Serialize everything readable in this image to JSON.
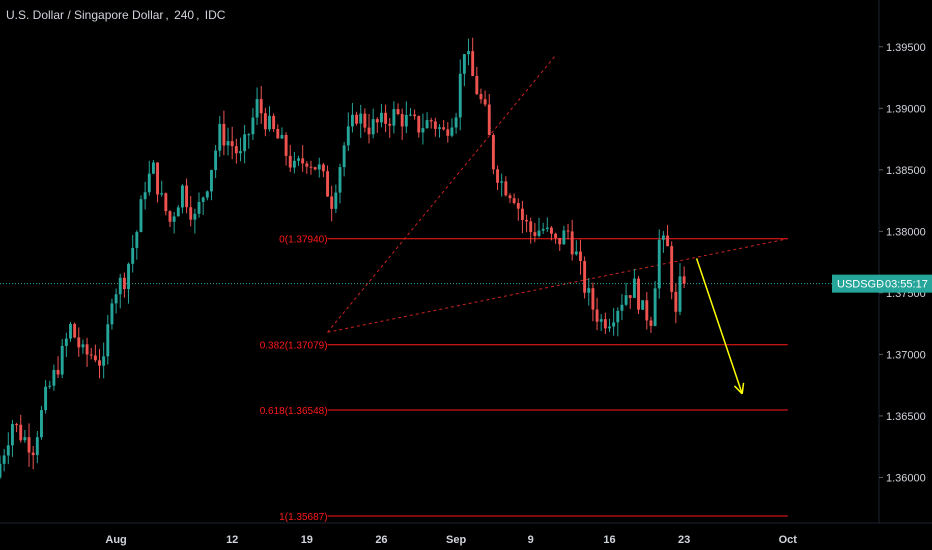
{
  "header": {
    "symbol_name": "U.S. Dollar / Singapore Dollar",
    "interval": "240",
    "source": "IDC"
  },
  "price_label": {
    "ticker": "USDSGD",
    "countdown": "03:55:17"
  },
  "colors": {
    "background": "#000000",
    "up": "#26a69a",
    "down": "#ef5350",
    "fib_line": "#ff1a1a",
    "trendline": "#cc2222",
    "arrow": "#ffff00",
    "axis_text": "#d1d4dc",
    "last_price_bg": "#26a69a"
  },
  "chart_data": {
    "type": "candlestick",
    "ylim": [
      1.3563,
      1.3988
    ],
    "y_ticks": [
      "1.39500",
      "1.39000",
      "1.38500",
      "1.38000",
      "1.37500",
      "1.37000",
      "1.36500",
      "1.36000"
    ],
    "y_tick_values": [
      1.395,
      1.39,
      1.385,
      1.38,
      1.375,
      1.37,
      1.365,
      1.36
    ],
    "x_ticks": [
      "Aug",
      "12",
      "19",
      "26",
      "Sep",
      "9",
      "16",
      "23",
      "Oct"
    ],
    "x_tick_index": [
      28,
      56,
      74,
      92,
      110,
      128,
      147,
      165,
      190
    ],
    "x_range": [
      0,
      212
    ],
    "last_price": 1.37575,
    "close_path": [
      [
        0,
        1.36
      ],
      [
        4,
        1.3645
      ],
      [
        6,
        1.3635
      ],
      [
        9,
        1.3625
      ],
      [
        12,
        1.3665
      ],
      [
        16,
        1.37
      ],
      [
        18,
        1.3722
      ],
      [
        21,
        1.37
      ],
      [
        24,
        1.37
      ],
      [
        26,
        1.369
      ],
      [
        28,
        1.375
      ],
      [
        31,
        1.3762
      ],
      [
        34,
        1.38
      ],
      [
        36,
        1.3838
      ],
      [
        38,
        1.385
      ],
      [
        40,
        1.3825
      ],
      [
        42,
        1.3808
      ],
      [
        45,
        1.3835
      ],
      [
        48,
        1.381
      ],
      [
        51,
        1.384
      ],
      [
        54,
        1.388
      ],
      [
        57,
        1.387
      ],
      [
        59,
        1.386
      ],
      [
        61,
        1.388
      ],
      [
        63,
        1.3903
      ],
      [
        66,
        1.3885
      ],
      [
        69,
        1.387
      ],
      [
        72,
        1.385
      ],
      [
        75,
        1.386
      ],
      [
        78,
        1.385
      ],
      [
        81,
        1.3825
      ],
      [
        84,
        1.387
      ],
      [
        87,
        1.3895
      ],
      [
        90,
        1.3885
      ],
      [
        93,
        1.3888
      ],
      [
        96,
        1.3895
      ],
      [
        99,
        1.389
      ],
      [
        102,
        1.3885
      ],
      [
        105,
        1.389
      ],
      [
        108,
        1.388
      ],
      [
        111,
        1.39
      ],
      [
        113,
        1.395
      ],
      [
        115,
        1.3925
      ],
      [
        118,
        1.3895
      ],
      [
        120,
        1.3855
      ],
      [
        122,
        1.384
      ],
      [
        125,
        1.383
      ],
      [
        127,
        1.381
      ],
      [
        129,
        1.38
      ],
      [
        132,
        1.3802
      ],
      [
        135,
        1.379
      ],
      [
        138,
        1.38
      ],
      [
        140,
        1.378
      ],
      [
        142,
        1.3755
      ],
      [
        144,
        1.3738
      ],
      [
        146,
        1.3727
      ],
      [
        148,
        1.373
      ],
      [
        150,
        1.374
      ],
      [
        152,
        1.375
      ],
      [
        154,
        1.3755
      ],
      [
        156,
        1.3735
      ],
      [
        158,
        1.373
      ],
      [
        160,
        1.3792
      ],
      [
        162,
        1.3785
      ],
      [
        164,
        1.373
      ],
      [
        165,
        1.3755
      ]
    ],
    "fibonacci": [
      {
        "label": "0(1.37940)",
        "value": 1.3794
      },
      {
        "label": "0.382(1.37079)",
        "value": 1.37079
      },
      {
        "label": "0.618(1.36548)",
        "value": 1.36548
      },
      {
        "label": "1(1.35687)",
        "value": 1.35687
      }
    ],
    "fib_x_range": [
      79,
      190
    ],
    "trendlines": [
      {
        "from": [
          79,
          1.3718
        ],
        "to": [
          134,
          1.3943
        ]
      },
      {
        "from": [
          79,
          1.3718
        ],
        "to": [
          190,
          1.3794
        ]
      }
    ],
    "projection_arrow": {
      "from": [
        168,
        1.3778
      ],
      "to": [
        179,
        1.3668
      ]
    }
  }
}
